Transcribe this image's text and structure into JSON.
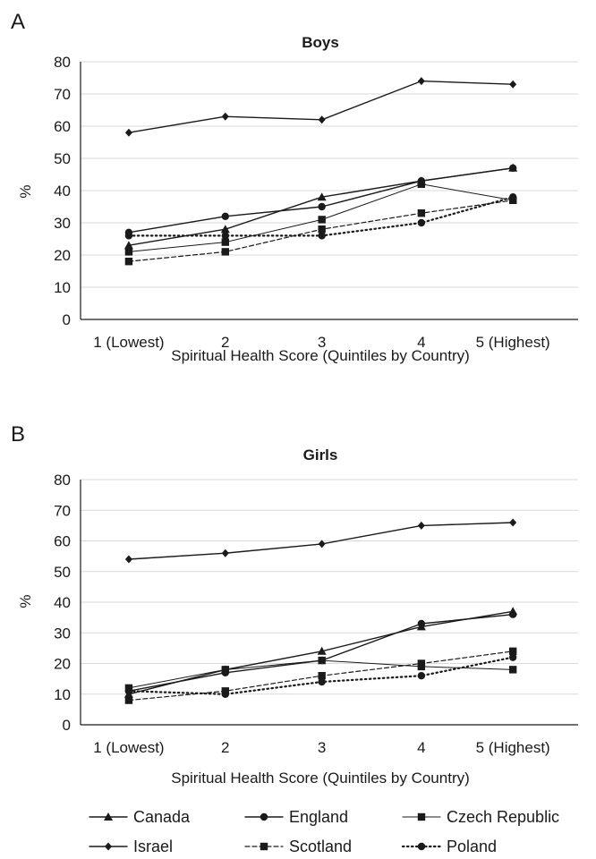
{
  "panels": [
    {
      "letter": "A",
      "title": "Boys"
    },
    {
      "letter": "B",
      "title": "Girls"
    }
  ],
  "chart_data": [
    {
      "type": "line",
      "title": "Boys",
      "xlabel": "Spiritual Health Score (Quintiles by Country)",
      "ylabel": "%",
      "categories": [
        "1 (Lowest)",
        "2",
        "3",
        "4",
        "5 (Highest)"
      ],
      "ylim": [
        0,
        80
      ],
      "yticks": [
        0,
        10,
        20,
        30,
        40,
        50,
        60,
        70,
        80
      ],
      "grid": true,
      "series": [
        {
          "name": "Canada",
          "values": [
            23,
            28,
            38,
            43,
            47
          ]
        },
        {
          "name": "England",
          "values": [
            27,
            32,
            35,
            43,
            47
          ]
        },
        {
          "name": "Czech Republic",
          "values": [
            21,
            24,
            31,
            42,
            37
          ]
        },
        {
          "name": "Israel",
          "values": [
            58,
            63,
            62,
            74,
            73
          ]
        },
        {
          "name": "Scotland",
          "values": [
            18,
            21,
            28,
            33,
            37
          ]
        },
        {
          "name": "Poland",
          "values": [
            26,
            26,
            26,
            30,
            38
          ]
        }
      ]
    },
    {
      "type": "line",
      "title": "Girls",
      "xlabel": "Spiritual Health Score (Quintiles by Country)",
      "ylabel": "%",
      "categories": [
        "1 (Lowest)",
        "2",
        "3",
        "4",
        "5 (Highest)"
      ],
      "ylim": [
        0,
        80
      ],
      "yticks": [
        0,
        10,
        20,
        30,
        40,
        50,
        60,
        70,
        80
      ],
      "grid": true,
      "series": [
        {
          "name": "Canada",
          "values": [
            10,
            18,
            24,
            32,
            37
          ]
        },
        {
          "name": "England",
          "values": [
            11,
            17,
            21,
            33,
            36
          ]
        },
        {
          "name": "Czech Republic",
          "values": [
            12,
            18,
            21,
            19,
            18
          ]
        },
        {
          "name": "Israel",
          "values": [
            54,
            56,
            59,
            65,
            66
          ]
        },
        {
          "name": "Scotland",
          "values": [
            8,
            11,
            16,
            20,
            24
          ]
        },
        {
          "name": "Poland",
          "values": [
            11,
            10,
            14,
            16,
            22
          ]
        }
      ]
    }
  ],
  "series_styles": {
    "Canada": {
      "marker": "triangle",
      "dash": "solid",
      "stroke_width": 1.4
    },
    "England": {
      "marker": "circle",
      "dash": "solid",
      "stroke_width": 1.4
    },
    "Czech Republic": {
      "marker": "square",
      "dash": "solid",
      "stroke_width": 1.0
    },
    "Israel": {
      "marker": "diamond",
      "dash": "solid",
      "stroke_width": 1.4
    },
    "Scotland": {
      "marker": "square",
      "dash": "dashed",
      "stroke_width": 1.2
    },
    "Poland": {
      "marker": "circle",
      "dash": "dotted",
      "stroke_width": 2.2
    }
  },
  "legend": {
    "placement": "bottom",
    "items": [
      "Canada",
      "England",
      "Czech Republic",
      "Israel",
      "Scotland",
      "Poland"
    ]
  },
  "colors": {
    "line": "#1a1a1a",
    "grid": "#d9d9d9"
  }
}
